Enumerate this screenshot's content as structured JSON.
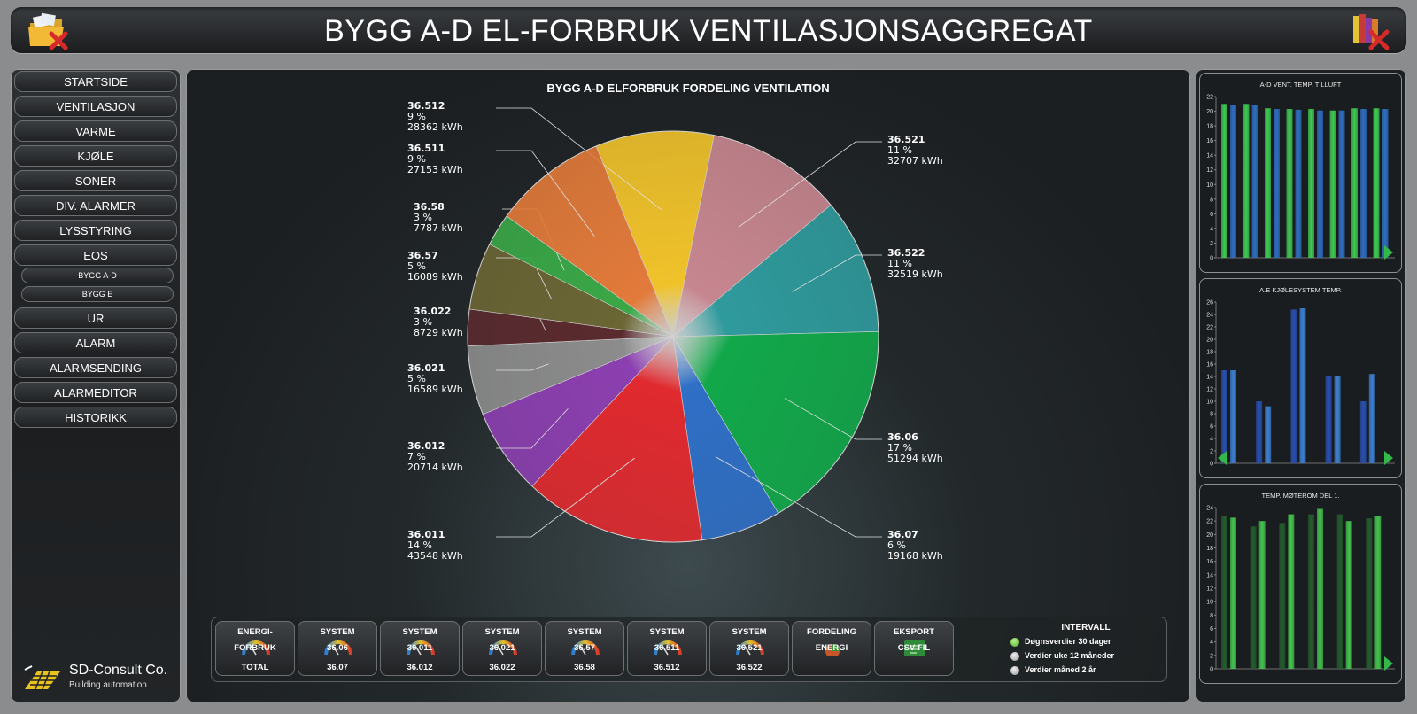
{
  "header": {
    "title": "BYGG A-D EL-FORBRUK VENTILASJONSAGGREGAT",
    "left_icon": "folder-close-icon",
    "right_icon": "books-close-icon"
  },
  "nav": {
    "items": [
      "STARTSIDE",
      "VENTILASJON",
      "VARME",
      "KJØLE",
      "SONER",
      "DIV. ALARMER",
      "LYSSTYRING",
      "EOS"
    ],
    "sub_items": [
      "BYGG A-D",
      "BYGG E"
    ],
    "items2": [
      "UR",
      "ALARM",
      "ALARMSENDING",
      "ALARMEDITOR",
      "HISTORIKK"
    ]
  },
  "logo": {
    "name": "SD-Consult Co.",
    "tagline": "Building automation"
  },
  "chart_data": [
    {
      "type": "pie",
      "title": "BYGG A-D ELFORBRUK FORDELING VENTILATION",
      "slices": [
        {
          "label": "36.512",
          "percent": "9 %",
          "value": "28362 kWh",
          "kwh": 28362,
          "color": "#f0c22a"
        },
        {
          "label": "36.521",
          "percent": "11 %",
          "value": "32707 kWh",
          "kwh": 32707,
          "color": "#c7868f"
        },
        {
          "label": "36.522",
          "percent": "11 %",
          "value": "32519 kWh",
          "kwh": 32519,
          "color": "#2f9a9c"
        },
        {
          "label": "36.06",
          "percent": "17 %",
          "value": "51294 kWh",
          "kwh": 51294,
          "color": "#12a84a"
        },
        {
          "label": "36.07",
          "percent": "6 %",
          "value": "19168 kWh",
          "kwh": 19168,
          "color": "#2f6fc6"
        },
        {
          "label": "36.011",
          "percent": "14 %",
          "value": "43548 kWh",
          "kwh": 43548,
          "color": "#e02a2f"
        },
        {
          "label": "36.012",
          "percent": "7 %",
          "value": "20714 kWh",
          "kwh": 20714,
          "color": "#8c3fb0"
        },
        {
          "label": "36.021",
          "percent": "5 %",
          "value": "16589 kWh",
          "kwh": 16589,
          "color": "#8c8c8c"
        },
        {
          "label": "36.022",
          "percent": "3 %",
          "value": "8729 kWh",
          "kwh": 8729,
          "color": "#5a2a2e"
        },
        {
          "label": "36.57",
          "percent": "5 %",
          "value": "16089 kWh",
          "kwh": 16089,
          "color": "#6b6634"
        },
        {
          "label": "36.58",
          "percent": "3 %",
          "value": "7787 kWh",
          "kwh": 7787,
          "color": "#3aa847"
        },
        {
          "label": "36.511",
          "percent": "9 %",
          "value": "27153 kWh",
          "kwh": 27153,
          "color": "#e27a3a"
        }
      ]
    },
    {
      "type": "bar",
      "title": "A-D VENT. TEMP. TILLUFT",
      "ylim": [
        0,
        22
      ],
      "yticks": [
        "0",
        "2",
        "4",
        "6",
        "8",
        "10",
        "12",
        "14",
        "16",
        "18",
        "20",
        "22"
      ],
      "series": [
        {
          "color": "#3ecb52",
          "values": [
            21,
            21,
            20.4,
            20.3,
            20.3,
            20.1,
            20.4,
            20.4
          ]
        },
        {
          "color": "#2f6ec4",
          "values": [
            20.8,
            20.8,
            20.3,
            20.2,
            20.1,
            20.1,
            20.3,
            20.3
          ]
        }
      ]
    },
    {
      "type": "bar",
      "title": "A.E KJØLESYSTEM TEMP.",
      "ylim": [
        0,
        26
      ],
      "yticks": [
        "0",
        "2",
        "4",
        "6",
        "8",
        "10",
        "12",
        "14",
        "16",
        "18",
        "20",
        "22",
        "24",
        "26"
      ],
      "series": [
        {
          "color": "#2a4fb0",
          "values": [
            15,
            10,
            24.8,
            14,
            10
          ]
        },
        {
          "color": "#3c7fd2",
          "values": [
            15,
            9.2,
            25,
            14,
            14.4
          ]
        }
      ]
    },
    {
      "type": "bar",
      "title": "TEMP. MØTEROM DEL 1.",
      "ylim": [
        0,
        24
      ],
      "yticks": [
        "0",
        "2",
        "4",
        "6",
        "8",
        "10",
        "12",
        "14",
        "16",
        "18",
        "20",
        "22",
        "24"
      ],
      "series": [
        {
          "color": "#245c2e",
          "values": [
            22.7,
            21.2,
            21.7,
            23,
            23,
            22.4
          ]
        },
        {
          "color": "#44c44e",
          "values": [
            22.5,
            22,
            23,
            23.8,
            22,
            22.7
          ]
        }
      ]
    }
  ],
  "bottom": {
    "buttons": [
      {
        "l1": "ENERGI-",
        "l2": "FORBRUK",
        "l3": "TOTAL"
      },
      {
        "l1": "SYSTEM",
        "l2": "36.06",
        "l3": "36.07"
      },
      {
        "l1": "SYSTEM",
        "l2": "36.011",
        "l3": "36.012"
      },
      {
        "l1": "SYSTEM",
        "l2": "36.021",
        "l3": "36.022"
      },
      {
        "l1": "SYSTEM",
        "l2": "36.57",
        "l3": "36.58"
      },
      {
        "l1": "SYSTEM",
        "l2": "36.511",
        "l3": "36.512"
      },
      {
        "l1": "SYSTEM",
        "l2": "36.521",
        "l3": "36.522"
      },
      {
        "l1": "FORDELING",
        "l2": "ENERGI",
        "l3": ""
      },
      {
        "l1": "EKSPORT",
        "l2": "CSV-FIL",
        "l3": ""
      }
    ],
    "interval": {
      "title": "INTERVALL",
      "options": [
        {
          "label": "Døgnsverdier 30 dager",
          "selected": true
        },
        {
          "label": "Verdier uke 12 måneder",
          "selected": false
        },
        {
          "label": "Verdier måned 2 år",
          "selected": false
        }
      ]
    }
  }
}
